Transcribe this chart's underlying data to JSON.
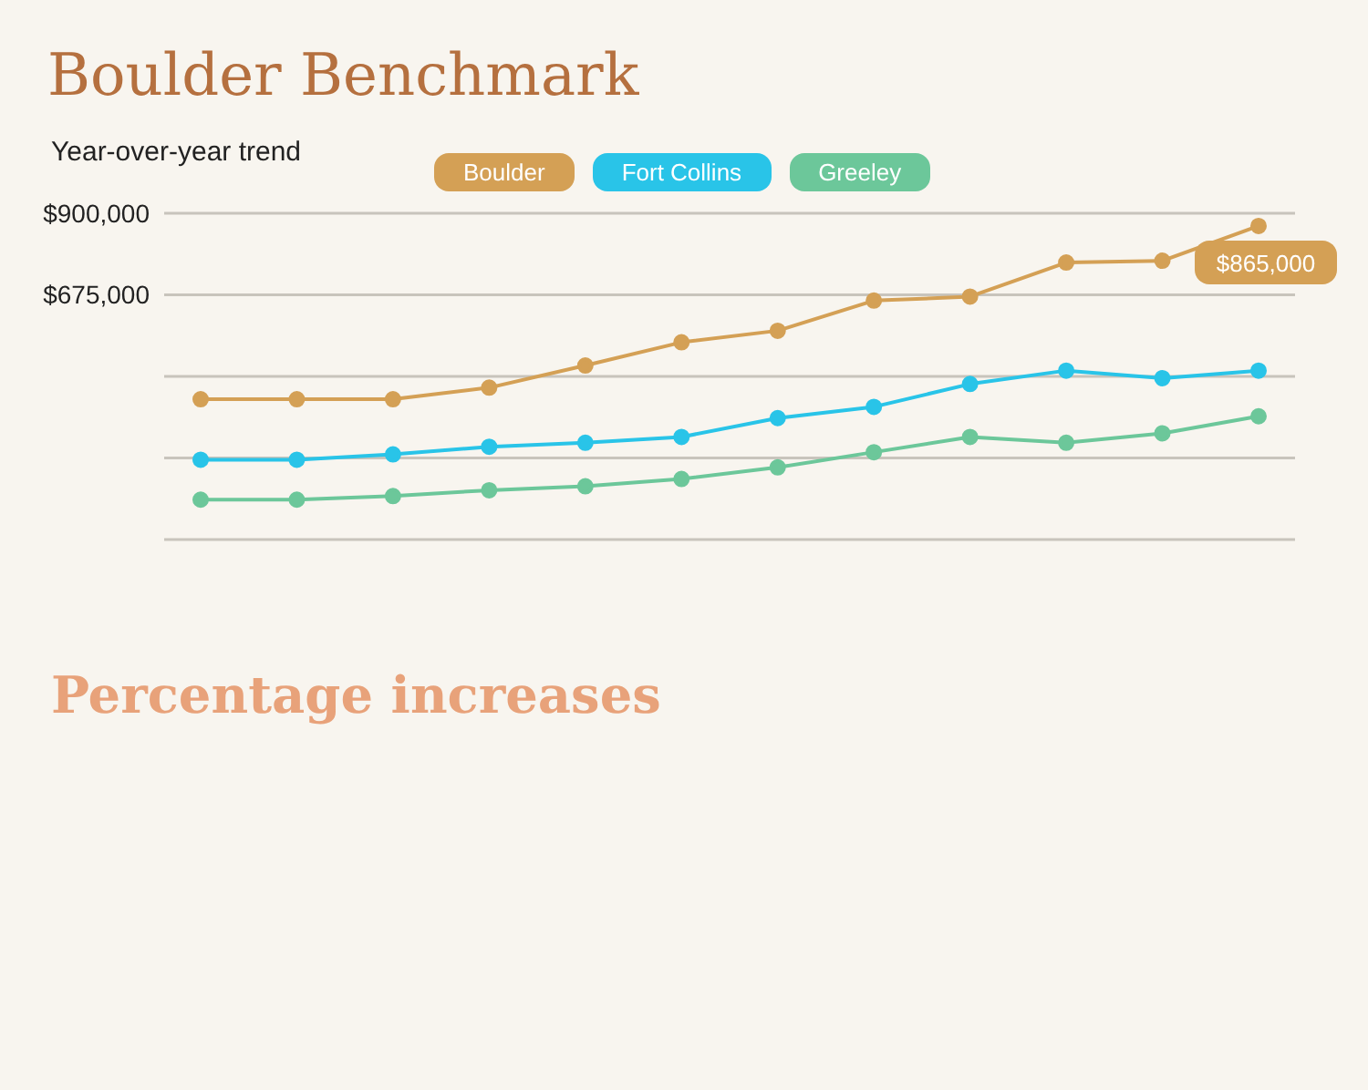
{
  "chart_data": {
    "type": "line",
    "title": "Boulder Benchmark",
    "subtitle": "Year-over-year trend",
    "categories": [
      null,
      null,
      null,
      null,
      null,
      null,
      null,
      null,
      null,
      null,
      null,
      null
    ],
    "series": [
      {
        "name": "Boulder",
        "color": "#d4a055",
        "values": [
          387000,
          387000,
          387000,
          419000,
          480000,
          544000,
          576000,
          659000,
          670000,
          764000,
          769000,
          865000
        ],
        "value_labels": [
          null,
          null,
          null,
          null,
          null,
          null,
          null,
          null,
          null,
          null,
          null,
          "$865,000"
        ]
      },
      {
        "name": "Fort Collins",
        "color": "#29c4e8",
        "values": [
          220000,
          220000,
          235000,
          256000,
          267000,
          283000,
          335000,
          366000,
          429000,
          466000,
          445000,
          466000
        ]
      },
      {
        "name": "Greeley",
        "color": "#6cc79a",
        "values": [
          110000,
          110000,
          120000,
          136000,
          147000,
          167000,
          199000,
          241000,
          283000,
          267000,
          293000,
          340000
        ]
      }
    ],
    "ylim": [
      0,
      900000
    ],
    "yticks": [
      {
        "value": 0,
        "label": null
      },
      {
        "value": 225000,
        "label": null
      },
      {
        "value": 450000,
        "label": null
      },
      {
        "value": 675000,
        "label": "$675,000"
      },
      {
        "value": 900000,
        "label": "$900,000"
      }
    ],
    "grid": "y",
    "legend": "top",
    "marker": "circle",
    "annotations": [
      "Percentage increases"
    ]
  }
}
